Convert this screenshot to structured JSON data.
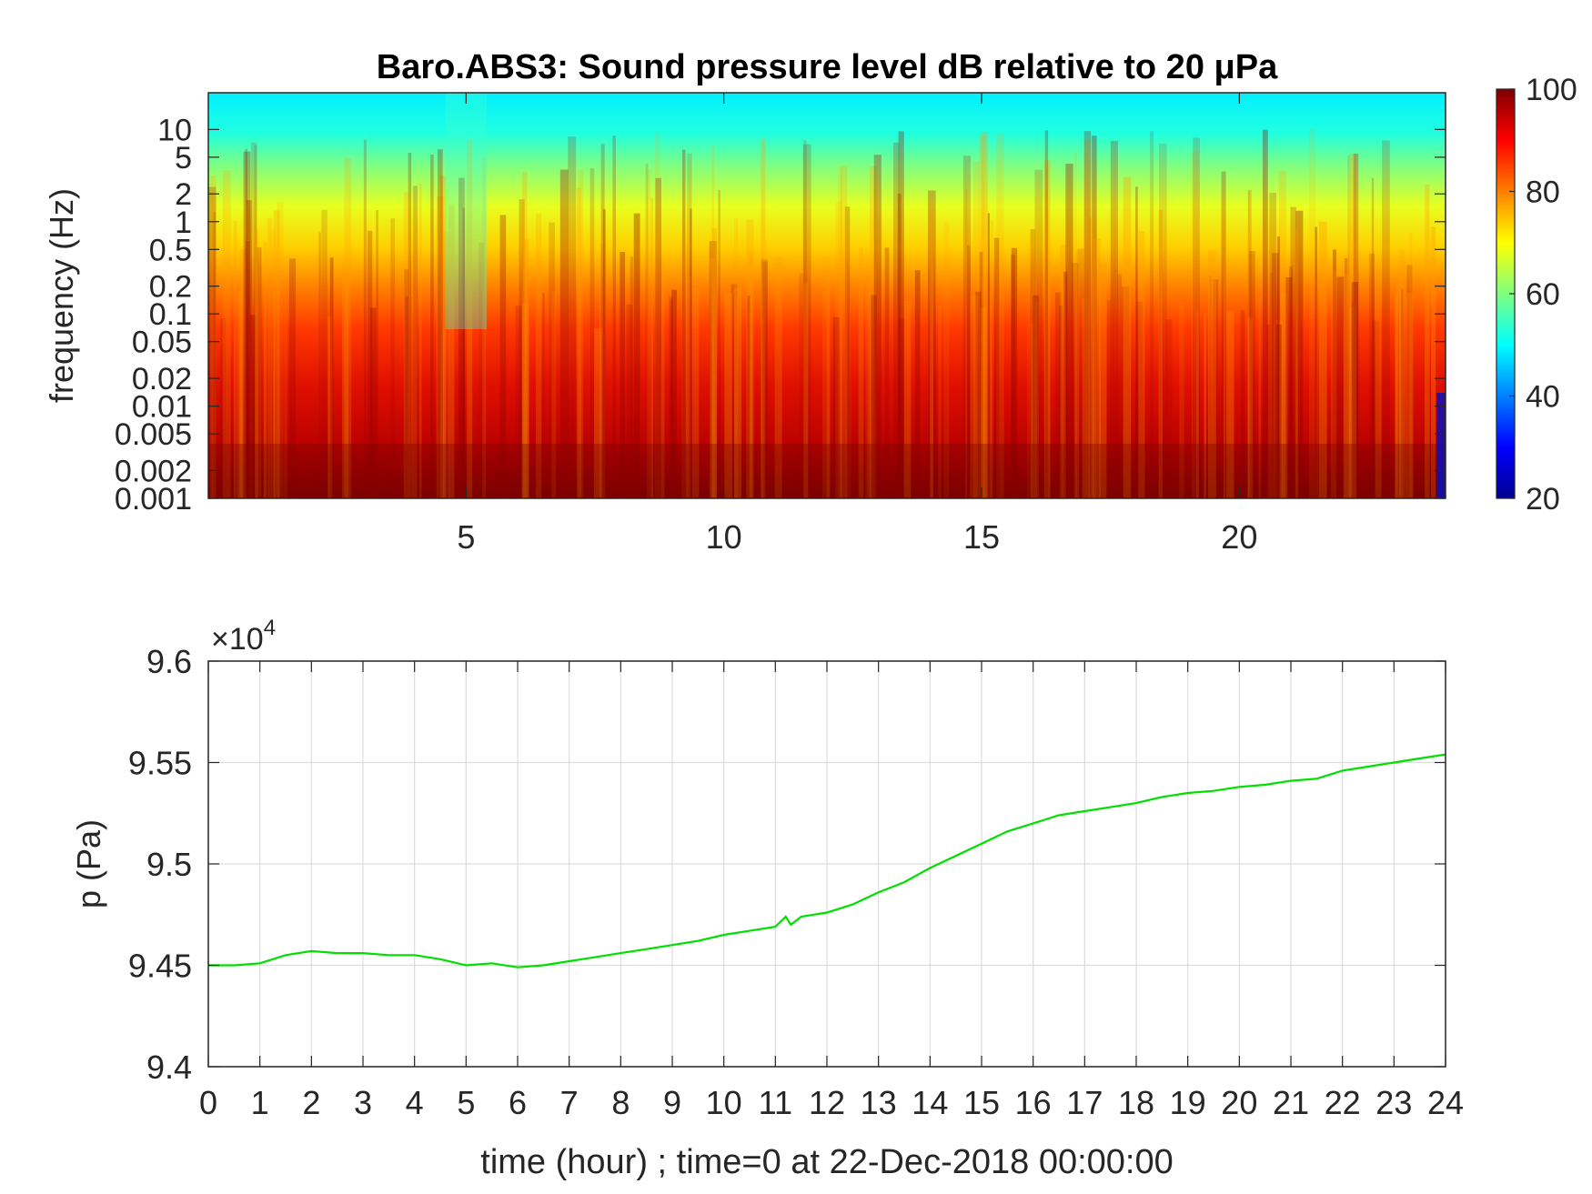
{
  "chart_data": [
    {
      "type": "heatmap",
      "title": "Baro.ABS3: Sound pressure level dB relative to 20 μPa",
      "ylabel": "frequency (Hz)",
      "xlabel": "",
      "x_scale": "linear",
      "y_scale": "log",
      "xlim": [
        0,
        24
      ],
      "ylim": [
        0.001,
        25
      ],
      "x_ticks": [
        5,
        10,
        15,
        20
      ],
      "x_tick_labels": [
        "5",
        "10",
        "15",
        "20"
      ],
      "y_ticks": [
        0.001,
        0.002,
        0.005,
        0.01,
        0.02,
        0.05,
        0.1,
        0.2,
        0.5,
        1,
        2,
        5,
        10
      ],
      "y_tick_labels": [
        "0.001",
        "0.002",
        "0.005",
        "0.01",
        "0.02",
        "0.05",
        "0.1",
        "0.2",
        "0.5",
        "1",
        "2",
        "5",
        "10"
      ],
      "colormap": "jet",
      "colorbar": {
        "range": [
          20,
          100
        ],
        "ticks": [
          20,
          40,
          60,
          80,
          100
        ],
        "tick_labels": [
          "20",
          "40",
          "60",
          "80",
          "100"
        ]
      },
      "grid": false
    },
    {
      "type": "line",
      "title": "",
      "xlabel": "time (hour) ; time=0 at 22-Dec-2018 00:00:00",
      "ylabel": "p (Pa)",
      "exponent_label": "×10",
      "exponent_power": "4",
      "xlim": [
        0,
        24
      ],
      "ylim": [
        94000,
        96000
      ],
      "x_ticks": [
        0,
        1,
        2,
        3,
        4,
        5,
        6,
        7,
        8,
        9,
        10,
        11,
        12,
        13,
        14,
        15,
        16,
        17,
        18,
        19,
        20,
        21,
        22,
        23,
        24
      ],
      "x_tick_labels": [
        "0",
        "1",
        "2",
        "3",
        "4",
        "5",
        "6",
        "7",
        "8",
        "9",
        "10",
        "11",
        "12",
        "13",
        "14",
        "15",
        "16",
        "17",
        "18",
        "19",
        "20",
        "21",
        "22",
        "23",
        "24"
      ],
      "y_ticks": [
        94000,
        94500,
        95000,
        95500,
        96000
      ],
      "y_tick_labels": [
        "9.4",
        "9.45",
        "9.5",
        "9.55",
        "9.6"
      ],
      "grid": true,
      "line_color": "#00e000",
      "series": [
        {
          "x": [
            0,
            0.5,
            1,
            1.5,
            2,
            2.5,
            3,
            3.5,
            4,
            4.5,
            5,
            5.5,
            6,
            6.5,
            7,
            7.5,
            8,
            8.5,
            9,
            9.5,
            10,
            10.5,
            11,
            11.2,
            11.3,
            11.5,
            12,
            12.5,
            13,
            13.5,
            14,
            14.5,
            15,
            15.5,
            16,
            16.5,
            17,
            17.5,
            18,
            18.5,
            19,
            19.5,
            20,
            20.5,
            21,
            21.5,
            22,
            22.5,
            23,
            23.5,
            24
          ],
          "values": [
            94500,
            94500,
            94510,
            94550,
            94570,
            94560,
            94560,
            94550,
            94550,
            94530,
            94500,
            94510,
            94490,
            94500,
            94520,
            94540,
            94560,
            94580,
            94600,
            94620,
            94650,
            94670,
            94690,
            94740,
            94700,
            94740,
            94760,
            94800,
            94860,
            94910,
            94980,
            95040,
            95100,
            95160,
            95200,
            95240,
            95260,
            95280,
            95300,
            95330,
            95350,
            95360,
            95380,
            95390,
            95410,
            95420,
            95460,
            95480,
            95500,
            95520,
            95540
          ]
        }
      ]
    }
  ]
}
